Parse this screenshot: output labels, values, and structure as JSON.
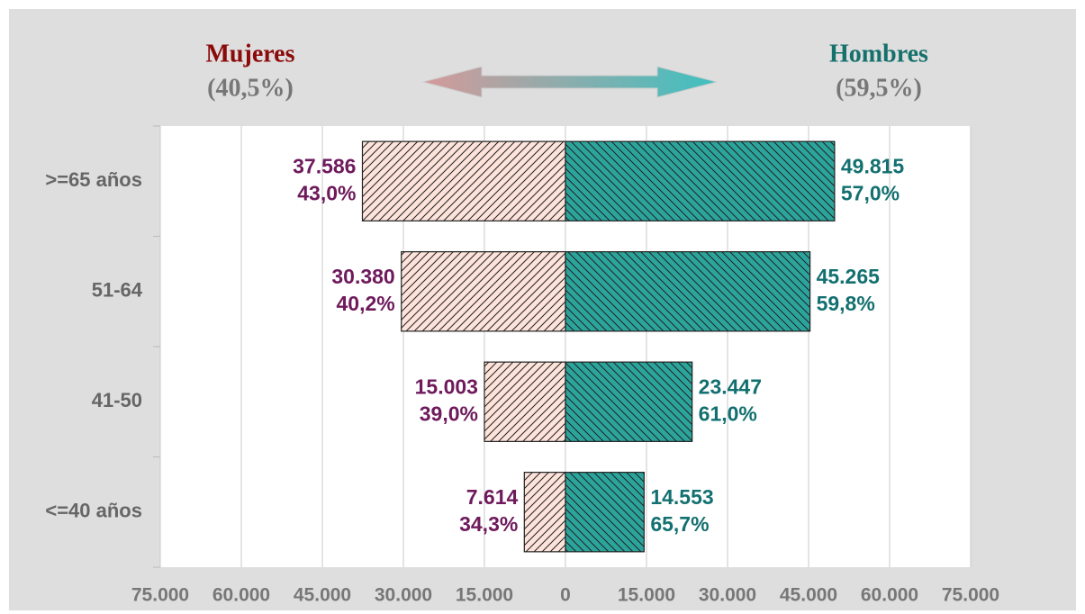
{
  "chart_data": {
    "type": "diverging_bar",
    "categories": [
      ">=65 años",
      "51-64",
      "41-50",
      "<=40 años"
    ],
    "series": [
      {
        "name": "Mujeres",
        "share_label": "(40,5%)",
        "color": "#fde3da",
        "hatch": "/",
        "name_color": "#8b0a0a",
        "label_color": "#6e1a5c",
        "values": [
          -37586,
          -30380,
          -15003,
          -7614
        ],
        "value_labels": [
          "37.586",
          "30.380",
          "15.003",
          "7.614"
        ],
        "percent_labels": [
          "43,0%",
          "40,2%",
          "39,0%",
          "34,3%"
        ]
      },
      {
        "name": "Hombres",
        "share_label": "(59,5%)",
        "color": "#2ba59c",
        "hatch": "\\",
        "name_color": "#16706c",
        "label_color": "#137070",
        "values": [
          49815,
          45265,
          23447,
          14553
        ],
        "value_labels": [
          "49.815",
          "45.265",
          "23.447",
          "14.553"
        ],
        "percent_labels": [
          "57,0%",
          "59,8%",
          "61,0%",
          "65,7%"
        ]
      }
    ],
    "xlim": [
      -75000,
      75000
    ],
    "xticks": [
      {
        "value": -75000,
        "label": "75.000"
      },
      {
        "value": -60000,
        "label": "60.000"
      },
      {
        "value": -45000,
        "label": "45.000"
      },
      {
        "value": -30000,
        "label": "30.000"
      },
      {
        "value": -15000,
        "label": "15.000"
      },
      0,
      {
        "value": 15000,
        "label": "15.000"
      },
      {
        "value": 30000,
        "label": "30.000"
      },
      {
        "value": 45000,
        "label": "45.000"
      },
      {
        "value": 60000,
        "label": "60.000"
      },
      {
        "value": 75000,
        "label": "75.000"
      }
    ],
    "grid": true
  }
}
